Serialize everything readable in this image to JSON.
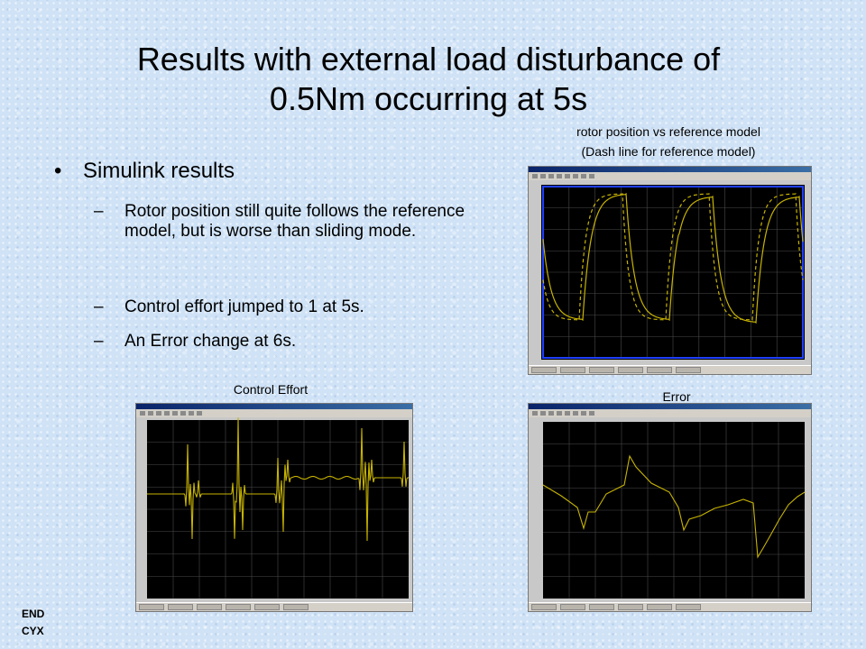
{
  "slide": {
    "title_line1": "Results with external load disturbance of",
    "title_line2": "0.5Nm occurring at 5s",
    "bullet": "Simulink results",
    "sub_items": [
      "Rotor position still quite follows the reference model, but is worse than sliding mode.",
      "Control effort jumped to 1 at 5s.",
      "An Error change at 6s."
    ],
    "dash": "–",
    "bullet_symbol": "•",
    "caption_rotor_line1": "rotor position vs reference model",
    "caption_rotor_line2": "(Dash line for reference model)",
    "caption_control": "Control Effort",
    "caption_error": "Error",
    "footer_line1": "END",
    "footer_line2": "CYX"
  },
  "colors": {
    "trace": "#c8b400",
    "grid": "#4a4a4a",
    "plot_bg": "#000000",
    "axes_box_rotor": "#1f3fff"
  }
}
